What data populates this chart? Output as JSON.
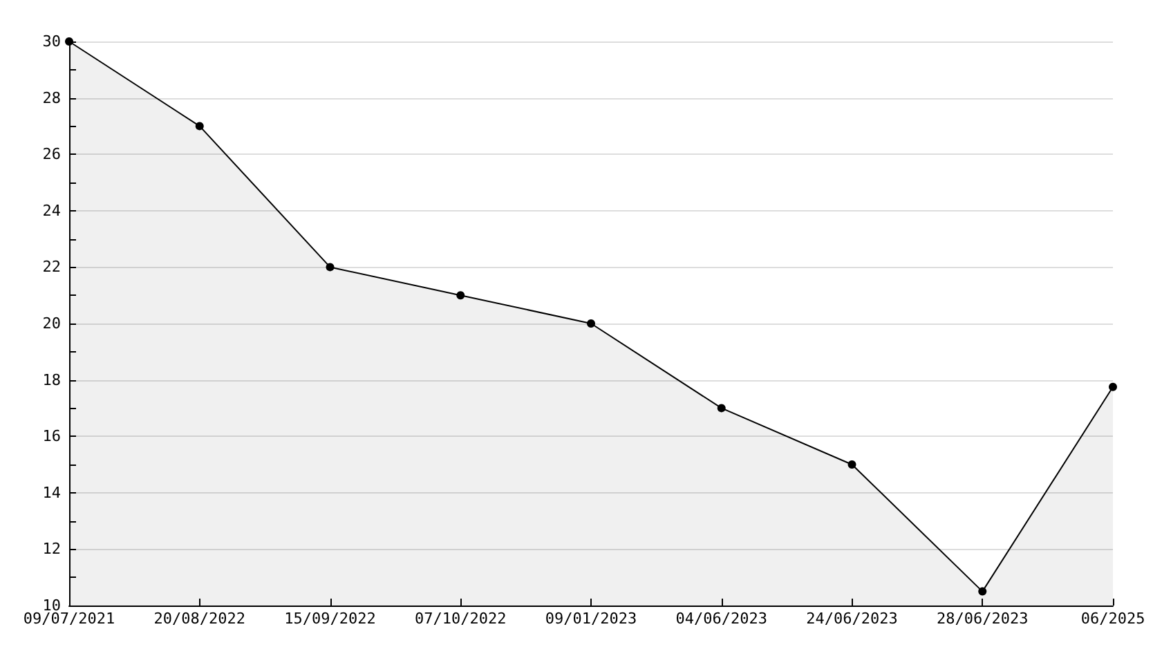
{
  "chart_data": {
    "type": "area",
    "categories": [
      "09/07/2021",
      "20/08/2022",
      "15/09/2022",
      "07/10/2022",
      "09/01/2023",
      "04/06/2023",
      "24/06/2023",
      "28/06/2023",
      "06/2025"
    ],
    "series": [
      {
        "color": "#000000",
        "values": [
          30,
          27,
          22,
          21,
          20,
          17,
          15,
          10.5,
          17.75
        ]
      }
    ],
    "ylim": [
      10,
      30
    ],
    "yticks": [
      10,
      12,
      14,
      16,
      18,
      20,
      22,
      24,
      26,
      28,
      30
    ],
    "grid": "y",
    "marker": "circle",
    "line_style": "solid"
  }
}
